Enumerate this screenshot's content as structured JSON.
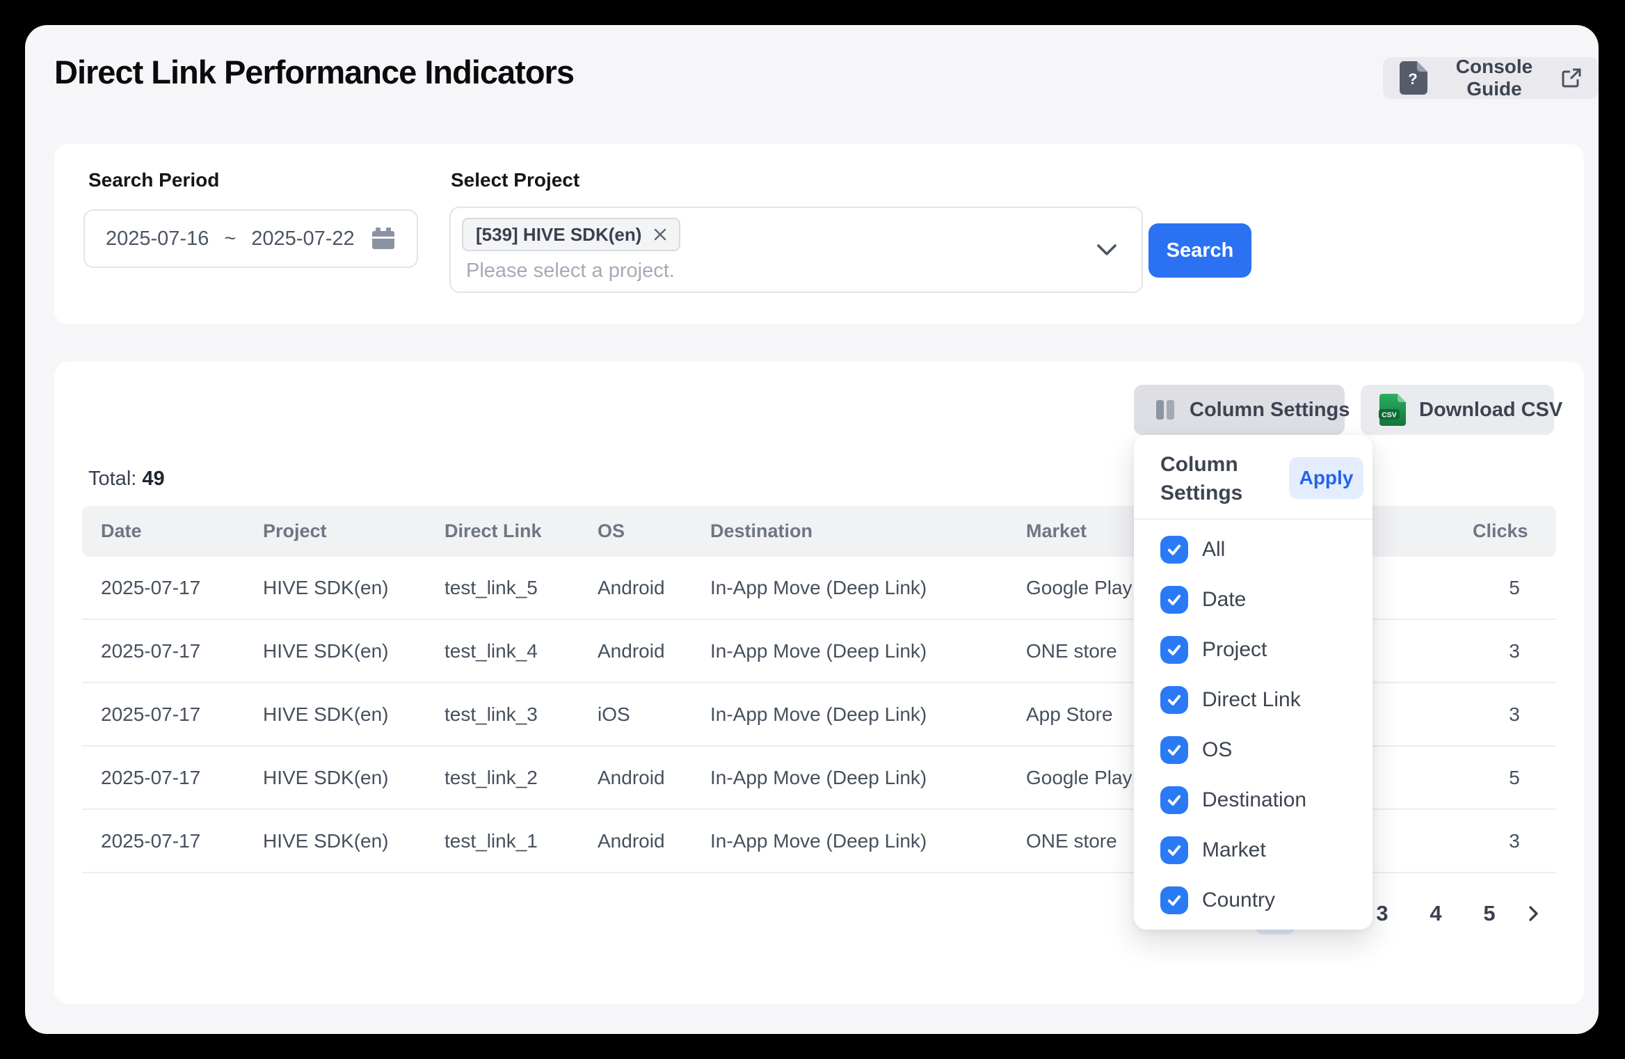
{
  "colors": {
    "accent_blue": "#2b72f2",
    "accent_blue_light": "#e3edfd",
    "checkbox_blue": "#2b7af5",
    "csv_green": "#1f9d52"
  },
  "page_title": "Direct Link Performance Indicators",
  "console_guide": {
    "label": "Console Guide"
  },
  "filters": {
    "period": {
      "label": "Search Period",
      "start": "2025-07-16",
      "separator": "~",
      "end": "2025-07-22"
    },
    "project": {
      "label": "Select Project",
      "selected": "[539] HIVE SDK(en)",
      "placeholder": "Please select a project."
    },
    "search_label": "Search"
  },
  "toolbar": {
    "column_settings": "Column Settings",
    "download_csv": "Download CSV",
    "csv_badge": "CSV"
  },
  "table": {
    "total_label": "Total:",
    "total_value": "49",
    "headers": {
      "date": "Date",
      "project": "Project",
      "direct_link": "Direct Link",
      "os": "OS",
      "destination": "Destination",
      "market": "Market",
      "country": "",
      "clicks": "Clicks"
    },
    "rows": [
      {
        "date": "2025-07-17",
        "project": "HIVE SDK(en)",
        "direct_link": "test_link_5",
        "os": "Android",
        "destination": "In-App Move (Deep Link)",
        "market": "Google Play",
        "country_visible": ")",
        "clicks": "5"
      },
      {
        "date": "2025-07-17",
        "project": "HIVE SDK(en)",
        "direct_link": "test_link_4",
        "os": "Android",
        "destination": "In-App Move (Deep Link)",
        "market": "ONE store",
        "country_visible": ")",
        "clicks": "3"
      },
      {
        "date": "2025-07-17",
        "project": "HIVE SDK(en)",
        "direct_link": "test_link_3",
        "os": "iOS",
        "destination": "In-App Move (Deep Link)",
        "market": "App Store",
        "country_visible": ")",
        "clicks": "3"
      },
      {
        "date": "2025-07-17",
        "project": "HIVE SDK(en)",
        "direct_link": "test_link_2",
        "os": "Android",
        "destination": "In-App Move (Deep Link)",
        "market": "Google Play",
        "country_visible": ")",
        "clicks": "5"
      },
      {
        "date": "2025-07-17",
        "project": "HIVE SDK(en)",
        "direct_link": "test_link_1",
        "os": "Android",
        "destination": "In-App Move (Deep Link)",
        "market": "ONE store",
        "country_visible": ")",
        "clicks": "3"
      }
    ]
  },
  "pagination": {
    "pages": [
      "3",
      "4",
      "5"
    ]
  },
  "column_settings_popover": {
    "title_line1": "Column",
    "title_line2": "Settings",
    "apply": "Apply",
    "options": [
      {
        "label": "All",
        "checked": true
      },
      {
        "label": "Date",
        "checked": true
      },
      {
        "label": "Project",
        "checked": true
      },
      {
        "label": "Direct Link",
        "checked": true
      },
      {
        "label": "OS",
        "checked": true
      },
      {
        "label": "Destination",
        "checked": true
      },
      {
        "label": "Market",
        "checked": true
      },
      {
        "label": "Country",
        "checked": true
      }
    ]
  }
}
